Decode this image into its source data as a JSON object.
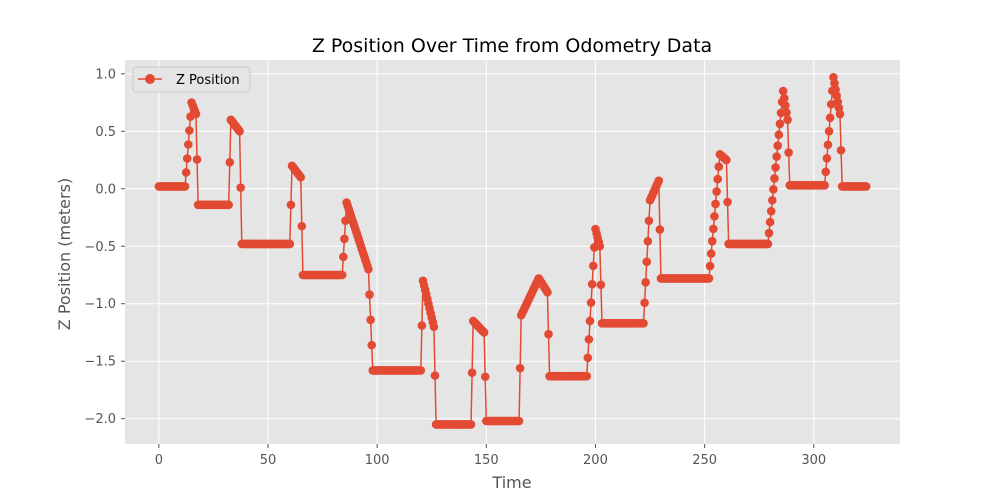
{
  "chart_data": {
    "type": "line",
    "title": "Z Position Over Time from Odometry Data",
    "xlabel": "Time",
    "ylabel": "Z Position (meters)",
    "xlim": [
      -15.5,
      339.5
    ],
    "ylim": [
      -2.22,
      1.12
    ],
    "xticks": [
      0,
      50,
      100,
      150,
      200,
      250,
      300
    ],
    "yticks": [
      -2.0,
      -1.5,
      -1.0,
      -0.5,
      0.0,
      0.5,
      1.0
    ],
    "xtick_labels": [
      "0",
      "50",
      "100",
      "150",
      "200",
      "250",
      "300"
    ],
    "ytick_labels": [
      "−2.0",
      "−1.5",
      "−1.0",
      "−0.5",
      "0.0",
      "0.5",
      "1.0"
    ],
    "grid": true,
    "legend_position": "top-left",
    "marker": "circle",
    "series": [
      {
        "name": "Z Position",
        "color": "#E24A33",
        "keypoints": [
          [
            0,
            0.02
          ],
          [
            12,
            0.02
          ],
          [
            15,
            0.75
          ],
          [
            17,
            0.65
          ],
          [
            18,
            -0.14
          ],
          [
            32,
            -0.14
          ],
          [
            33,
            0.6
          ],
          [
            37,
            0.5
          ],
          [
            38,
            -0.48
          ],
          [
            60,
            -0.48
          ],
          [
            61,
            0.2
          ],
          [
            65,
            0.1
          ],
          [
            66,
            -0.75
          ],
          [
            84,
            -0.75
          ],
          [
            86,
            -0.12
          ],
          [
            90,
            -0.35
          ],
          [
            96,
            -0.7
          ],
          [
            98,
            -1.58
          ],
          [
            120,
            -1.58
          ],
          [
            121,
            -0.8
          ],
          [
            126,
            -1.2
          ],
          [
            127,
            -2.05
          ],
          [
            143,
            -2.05
          ],
          [
            144,
            -1.15
          ],
          [
            149,
            -1.25
          ],
          [
            150,
            -2.02
          ],
          [
            165,
            -2.02
          ],
          [
            166,
            -1.1
          ],
          [
            174,
            -0.78
          ],
          [
            178,
            -0.9
          ],
          [
            179,
            -1.63
          ],
          [
            196,
            -1.63
          ],
          [
            200,
            -0.35
          ],
          [
            202,
            -0.5
          ],
          [
            203,
            -1.17
          ],
          [
            222,
            -1.17
          ],
          [
            225,
            -0.1
          ],
          [
            229,
            0.07
          ],
          [
            230,
            -0.78
          ],
          [
            252,
            -0.78
          ],
          [
            257,
            0.3
          ],
          [
            260,
            0.25
          ],
          [
            261,
            -0.48
          ],
          [
            279,
            -0.48
          ],
          [
            286,
            0.85
          ],
          [
            288,
            0.6
          ],
          [
            289,
            0.03
          ],
          [
            305,
            0.03
          ],
          [
            309,
            0.97
          ],
          [
            312,
            0.65
          ],
          [
            313,
            0.02
          ],
          [
            324,
            0.02
          ]
        ]
      }
    ]
  }
}
